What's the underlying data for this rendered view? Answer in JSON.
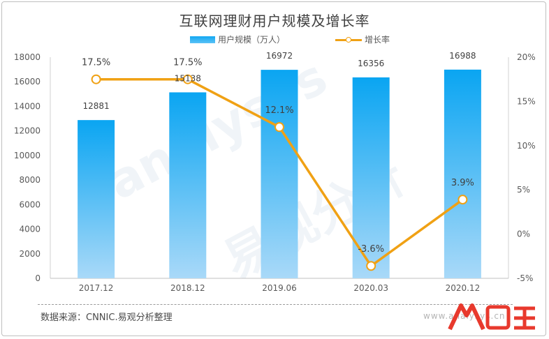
{
  "colors": {
    "bar": "#12a8f2",
    "line": "#f0a114",
    "axis_text": "#595959",
    "title": "#404040"
  },
  "watermark": {
    "brand": "analysys",
    "cn": "易观分析"
  },
  "footer": {
    "source": "数据来源：CNNIC.易观分析整理",
    "url": "www.analysys.cn",
    "logo": "人人都是产品经理 logo"
  },
  "chart_data": {
    "type": "bar",
    "title": "互联网理财用户规模及增长率",
    "categories": [
      "2017.12",
      "2018.12",
      "2019.06",
      "2020.03",
      "2020.12"
    ],
    "series": [
      {
        "name": "用户规模（万人）",
        "type": "bar",
        "axis": "left",
        "values": [
          12881,
          15138,
          16972,
          16356,
          16988
        ],
        "labels": [
          "12881",
          "15138",
          "16972",
          "16356",
          "16988"
        ]
      },
      {
        "name": "增长率",
        "type": "line",
        "axis": "right",
        "values": [
          17.5,
          17.5,
          12.1,
          -3.6,
          3.9
        ],
        "labels": [
          "17.5%",
          "17.5%",
          "12.1%",
          "-3.6%",
          "3.9%"
        ]
      }
    ],
    "y_left": {
      "ylim": [
        0,
        18000
      ],
      "ticks": [
        "0",
        "2000",
        "4000",
        "6000",
        "8000",
        "10000",
        "12000",
        "14000",
        "16000",
        "18000"
      ]
    },
    "y_right": {
      "ylim": [
        -5,
        20
      ],
      "ticks": [
        "-5%",
        "0%",
        "5%",
        "10%",
        "15%",
        "20%"
      ]
    },
    "grid": false,
    "legend_position": "top-center"
  }
}
